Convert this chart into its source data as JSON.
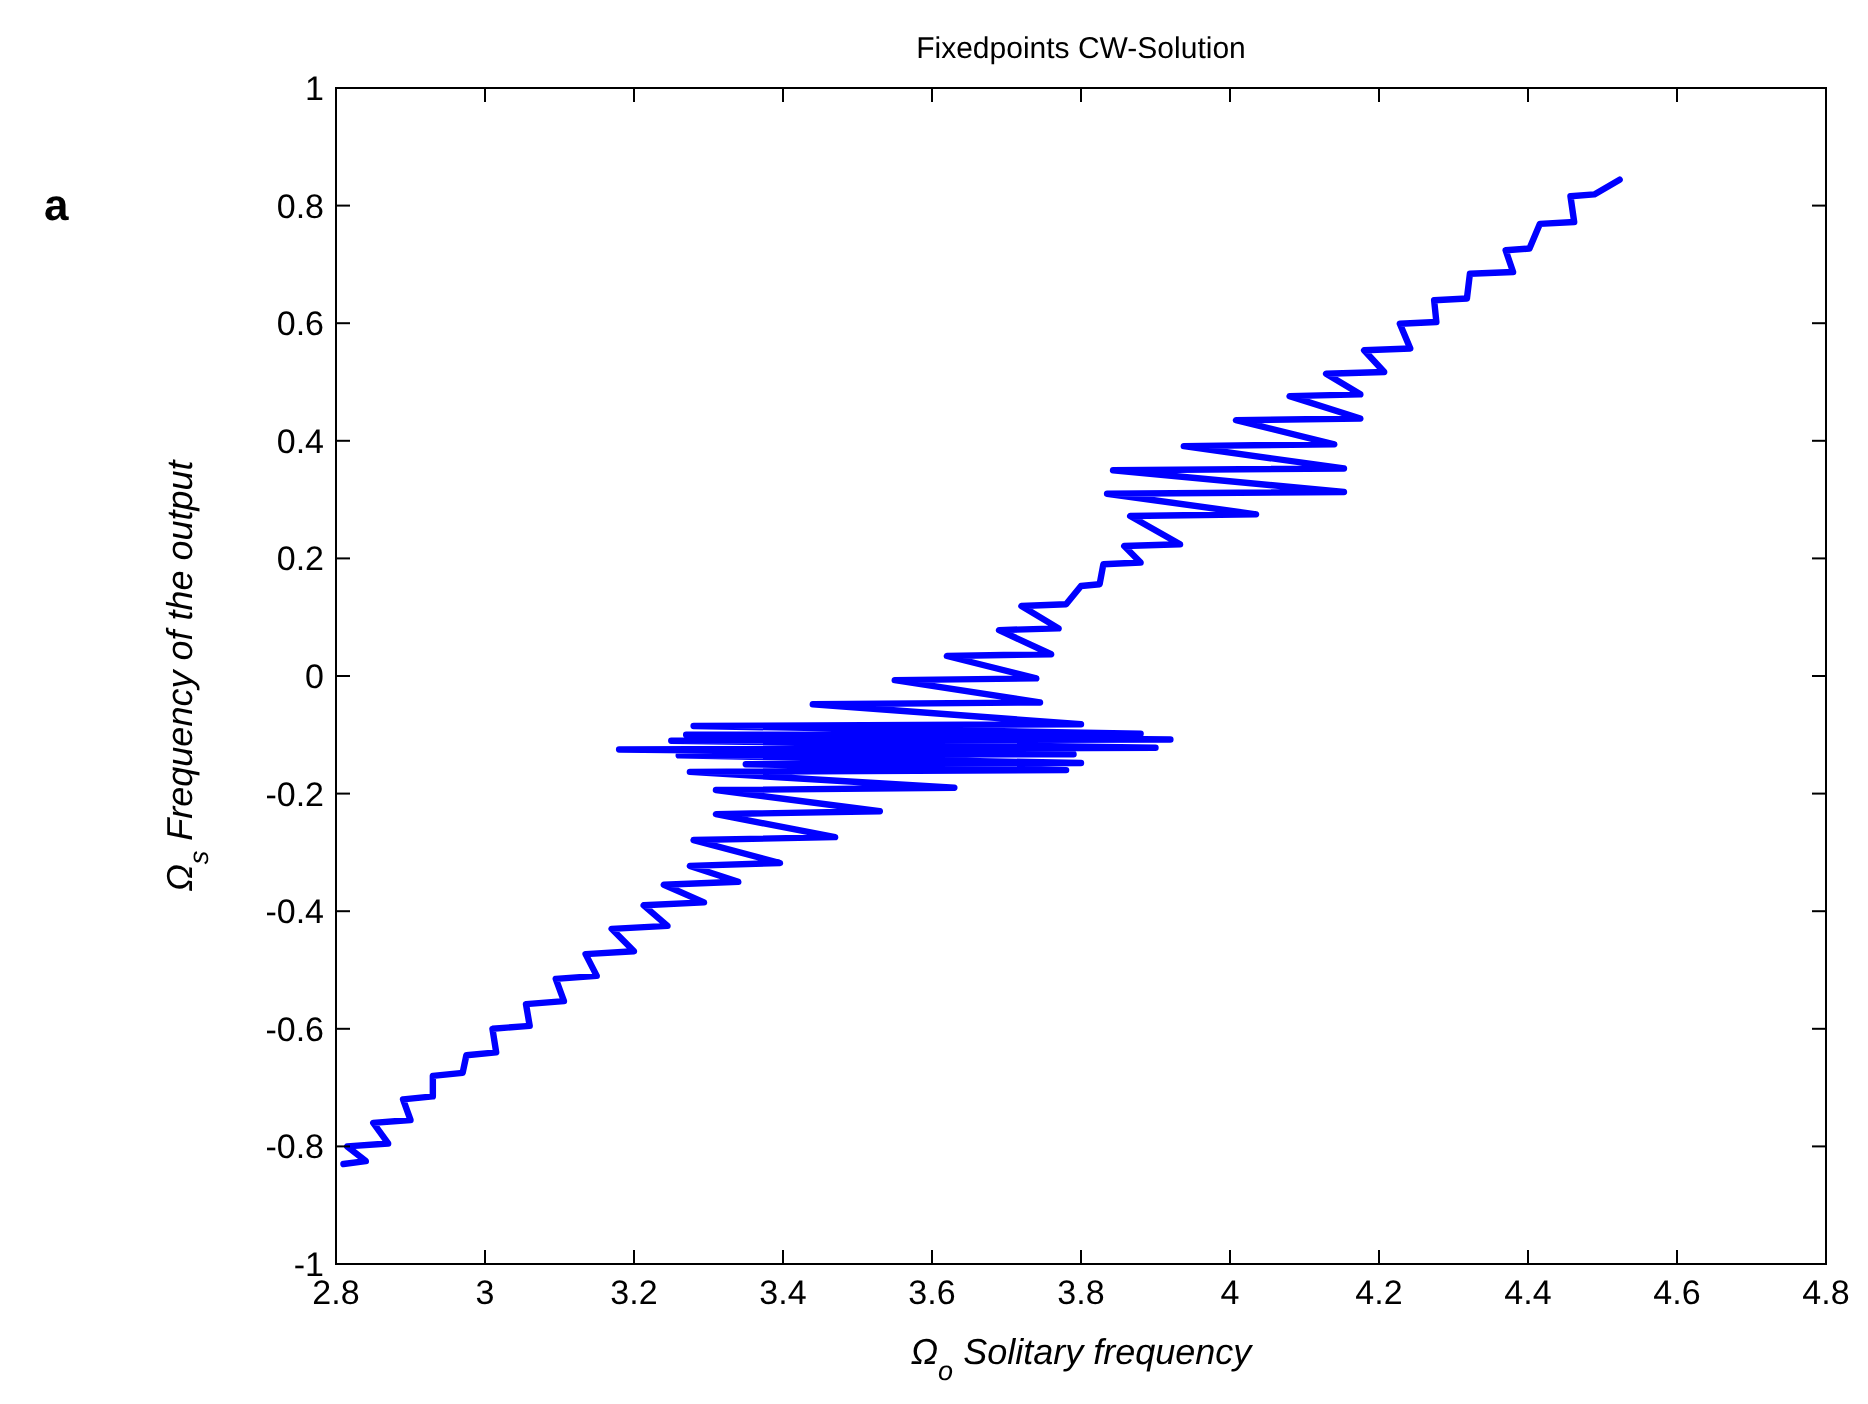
{
  "chart_data": {
    "type": "line",
    "title": "Fixedpoints CW-Solution",
    "xlabel": "Ω$_{o}$ Solitary frequency",
    "ylabel": "Ω$_{s}$ Frequency of the output",
    "annotations": [
      "a"
    ],
    "xlim": [
      2.8,
      4.8
    ],
    "ylim": [
      -1,
      1
    ],
    "xticks": [
      2.8,
      3,
      3.2,
      3.4,
      3.6,
      3.8,
      4,
      4.2,
      4.4,
      4.6,
      4.8
    ],
    "yticks": [
      -1,
      -0.8,
      -0.6,
      -0.4,
      -0.2,
      0,
      0.2,
      0.4,
      0.6,
      0.8,
      1
    ],
    "grid": false,
    "marker": "none",
    "line_style": "solid",
    "series": [
      {
        "color": "#0000ff",
        "x": [
          2.81,
          2.84,
          2.815,
          2.87,
          2.85,
          2.9,
          2.89,
          2.93,
          2.93,
          2.97,
          2.975,
          3.015,
          3.01,
          3.06,
          3.055,
          3.106,
          3.095,
          3.15,
          3.135,
          3.2,
          3.17,
          3.245,
          3.213,
          3.294,
          3.24,
          3.34,
          3.275,
          3.396,
          3.28,
          3.47,
          3.31,
          3.53,
          3.31,
          3.63,
          3.275,
          3.78,
          3.35,
          3.8,
          3.26,
          3.79,
          3.18,
          3.9,
          3.25,
          3.92,
          3.27,
          3.88,
          3.28,
          3.8,
          3.44,
          3.745,
          3.55,
          3.74,
          3.62,
          3.76,
          3.69,
          3.77,
          3.72,
          3.78,
          3.8,
          3.825,
          3.83,
          3.88,
          3.858,
          3.933,
          3.866,
          4.035,
          3.835,
          4.153,
          3.843,
          4.153,
          3.938,
          4.14,
          4.008,
          4.175,
          4.08,
          4.175,
          4.129,
          4.207,
          4.18,
          4.242,
          4.228,
          4.277,
          4.274,
          4.318,
          4.322,
          4.38,
          4.37,
          4.402,
          4.416,
          4.462,
          4.457,
          4.489,
          4.523
        ],
        "values": [
          -0.83,
          -0.825,
          -0.8,
          -0.795,
          -0.76,
          -0.755,
          -0.72,
          -0.715,
          -0.68,
          -0.675,
          -0.645,
          -0.64,
          -0.6,
          -0.595,
          -0.558,
          -0.553,
          -0.515,
          -0.51,
          -0.473,
          -0.468,
          -0.43,
          -0.425,
          -0.39,
          -0.385,
          -0.355,
          -0.35,
          -0.323,
          -0.318,
          -0.279,
          -0.274,
          -0.235,
          -0.23,
          -0.194,
          -0.19,
          -0.163,
          -0.16,
          -0.15,
          -0.148,
          -0.135,
          -0.133,
          -0.125,
          -0.122,
          -0.11,
          -0.108,
          -0.1,
          -0.098,
          -0.085,
          -0.082,
          -0.048,
          -0.045,
          -0.007,
          -0.004,
          0.034,
          0.037,
          0.078,
          0.081,
          0.119,
          0.122,
          0.153,
          0.156,
          0.19,
          0.193,
          0.221,
          0.224,
          0.272,
          0.275,
          0.31,
          0.313,
          0.35,
          0.353,
          0.391,
          0.394,
          0.435,
          0.438,
          0.476,
          0.479,
          0.514,
          0.517,
          0.554,
          0.557,
          0.599,
          0.602,
          0.639,
          0.642,
          0.684,
          0.687,
          0.724,
          0.727,
          0.769,
          0.772,
          0.816,
          0.819,
          0.844
        ]
      }
    ]
  }
}
